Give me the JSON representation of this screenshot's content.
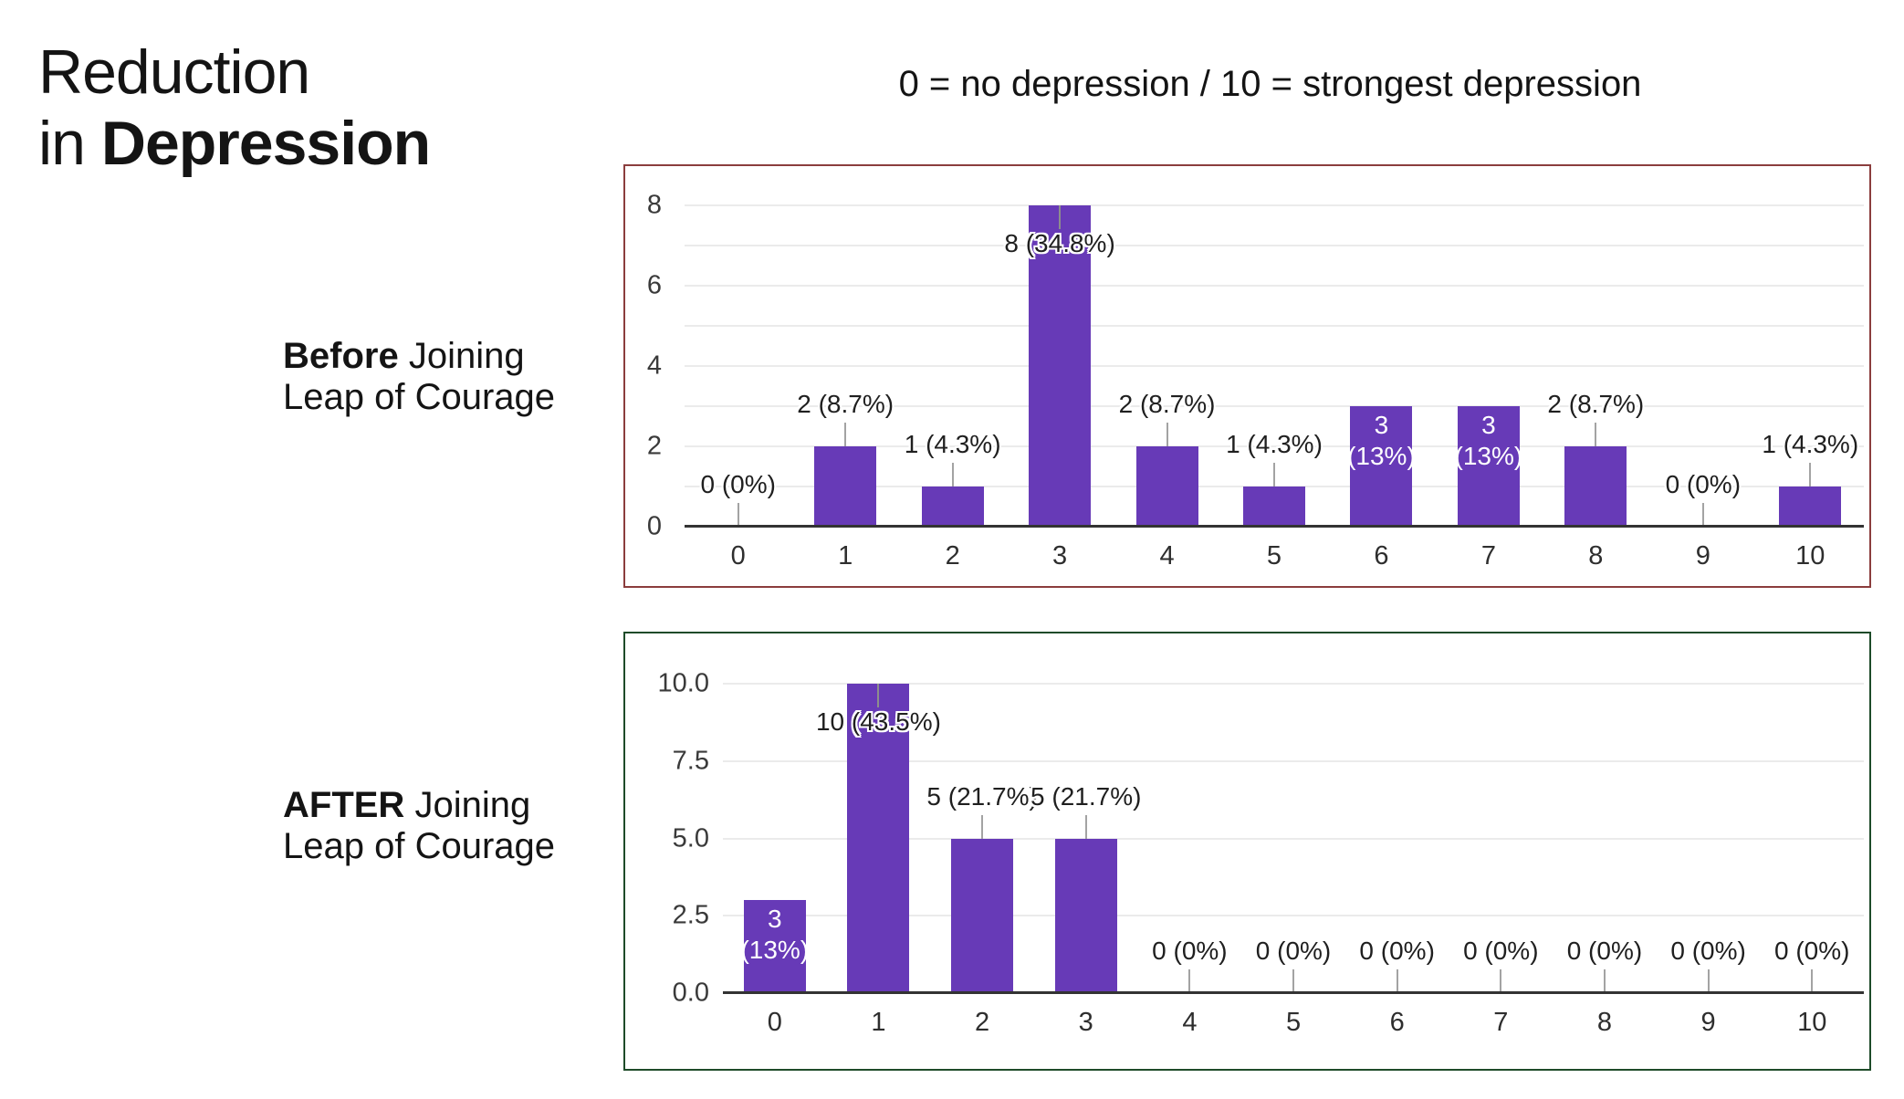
{
  "page": {
    "title_line1": "Reduction",
    "title_line2_regular": "in",
    "title_line2_bold": "Depression",
    "subtitle": "0 = no depression / 10 = strongest depression",
    "background_color": "#ffffff",
    "accent_bar_color": "#673ab7"
  },
  "charts": [
    {
      "side_label_bold": "Before",
      "side_label_rest": " Joining",
      "side_label_line2": "Leap of Courage",
      "border_color": "#8b3d3d"
    },
    {
      "side_label_bold": "AFTER",
      "side_label_rest": " Joining",
      "side_label_line2": "Leap of Courage",
      "border_color": "#1e4b29"
    }
  ],
  "chart_data": [
    {
      "type": "bar",
      "title": "Before Joining Leap of Courage",
      "subtitle": "0 = no depression / 10 = strongest depression",
      "categories": [
        "0",
        "1",
        "2",
        "3",
        "4",
        "5",
        "6",
        "7",
        "8",
        "9",
        "10"
      ],
      "values": [
        0,
        2,
        1,
        8,
        2,
        1,
        3,
        3,
        2,
        0,
        1
      ],
      "value_labels": [
        "0 (0%)",
        "2 (8.7%)",
        "1 (4.3%)",
        "8 (34.8%)",
        "2 (8.7%)",
        "1 (4.3%)",
        "3 (13%)",
        "3 (13%)",
        "2 (8.7%)",
        "0 (0%)",
        "1 (4.3%)"
      ],
      "label_placement": [
        "axis",
        "above",
        "above",
        "overlap",
        "above",
        "above",
        "inside",
        "inside",
        "above",
        "axis",
        "above"
      ],
      "bar_color": "#673ab7",
      "ylim": [
        0,
        8
      ],
      "yticks": [
        0,
        2,
        4,
        6,
        8
      ],
      "ytick_labels": [
        "0",
        "2",
        "4",
        "6",
        "8"
      ],
      "gridline_step": 1,
      "grid": true,
      "legend": "none",
      "xlabel": "",
      "ylabel": ""
    },
    {
      "type": "bar",
      "title": "AFTER Joining Leap of Courage",
      "subtitle": "0 = no depression / 10 = strongest depression",
      "categories": [
        "0",
        "1",
        "2",
        "3",
        "4",
        "5",
        "6",
        "7",
        "8",
        "9",
        "10"
      ],
      "values": [
        3,
        10,
        5,
        5,
        0,
        0,
        0,
        0,
        0,
        0,
        0
      ],
      "value_labels": [
        "3 (13%)",
        "10 (43.5%)",
        "5 (21.7%)",
        "5 (21.7%)",
        "0 (0%)",
        "0 (0%)",
        "0 (0%)",
        "0 (0%)",
        "0 (0%)",
        "0 (0%)",
        "0 (0%)"
      ],
      "label_placement": [
        "inside",
        "overlap",
        "above",
        "above",
        "axis",
        "axis",
        "axis",
        "axis",
        "axis",
        "axis",
        "axis"
      ],
      "bar_color": "#673ab7",
      "ylim": [
        0,
        10
      ],
      "yticks": [
        0,
        2.5,
        5,
        7.5,
        10
      ],
      "ytick_labels": [
        "0.0",
        "2.5",
        "5.0",
        "7.5",
        "10.0"
      ],
      "gridline_step": 2.5,
      "grid": true,
      "legend": "none",
      "xlabel": "",
      "ylabel": ""
    }
  ]
}
